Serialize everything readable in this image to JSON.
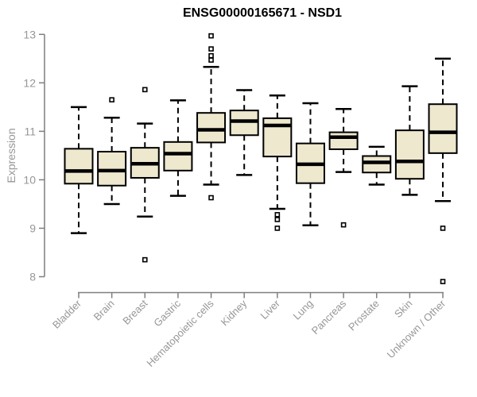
{
  "chart_data": {
    "type": "boxplot",
    "title": "ENSG00000165671 - NSD1",
    "ylabel": "Expression",
    "ylim": [
      8,
      13
    ],
    "yticks": [
      8,
      9,
      10,
      11,
      12,
      13
    ],
    "grid": false,
    "legend": "none",
    "categories": [
      "Bladder",
      "Brain",
      "Breast",
      "Gastric",
      "Hematopoietic cells",
      "Kidney",
      "Liver",
      "Lung",
      "Pancreas",
      "Prostate",
      "Skin",
      "Unknown / Other"
    ],
    "boxes": [
      {
        "category": "Bladder",
        "whisker_low": 8.9,
        "q1": 9.92,
        "median": 10.18,
        "q3": 10.64,
        "whisker_high": 11.5,
        "outliers": []
      },
      {
        "category": "Brain",
        "whisker_low": 9.5,
        "q1": 9.88,
        "median": 10.19,
        "q3": 10.58,
        "whisker_high": 11.28,
        "outliers": [
          11.65
        ]
      },
      {
        "category": "Breast",
        "whisker_low": 9.24,
        "q1": 10.04,
        "median": 10.33,
        "q3": 10.66,
        "whisker_high": 11.16,
        "outliers": [
          11.86,
          8.35
        ]
      },
      {
        "category": "Gastric",
        "whisker_low": 9.67,
        "q1": 10.19,
        "median": 10.54,
        "q3": 10.78,
        "whisker_high": 11.64,
        "outliers": []
      },
      {
        "category": "Hematopoietic cells",
        "whisker_low": 9.9,
        "q1": 10.77,
        "median": 11.03,
        "q3": 11.38,
        "whisker_high": 12.33,
        "outliers": [
          12.97,
          12.7,
          12.56,
          12.47,
          9.63
        ]
      },
      {
        "category": "Kidney",
        "whisker_low": 10.1,
        "q1": 10.92,
        "median": 11.21,
        "q3": 11.43,
        "whisker_high": 11.85,
        "outliers": []
      },
      {
        "category": "Liver",
        "whisker_low": 9.4,
        "q1": 10.48,
        "median": 11.12,
        "q3": 11.27,
        "whisker_high": 11.74,
        "outliers": [
          9.28,
          9.18,
          9.0
        ]
      },
      {
        "category": "Lung",
        "whisker_low": 9.06,
        "q1": 9.93,
        "median": 10.32,
        "q3": 10.75,
        "whisker_high": 11.58,
        "outliers": []
      },
      {
        "category": "Pancreas",
        "whisker_low": 10.16,
        "q1": 10.63,
        "median": 10.88,
        "q3": 10.98,
        "whisker_high": 11.46,
        "outliers": [
          9.07
        ]
      },
      {
        "category": "Prostate",
        "whisker_low": 9.9,
        "q1": 10.15,
        "median": 10.36,
        "q3": 10.49,
        "whisker_high": 10.68,
        "outliers": []
      },
      {
        "category": "Skin",
        "whisker_low": 9.69,
        "q1": 10.02,
        "median": 10.38,
        "q3": 11.02,
        "whisker_high": 11.93,
        "outliers": []
      },
      {
        "category": "Unknown / Other",
        "whisker_low": 9.56,
        "q1": 10.55,
        "median": 10.98,
        "q3": 11.56,
        "whisker_high": 12.5,
        "outliers": [
          9.0,
          7.9
        ]
      }
    ],
    "colors": {
      "box_fill": "#EDE8CE",
      "box_stroke": "#000000",
      "median": "#000000",
      "axis": "#7F7F7F",
      "tick_text": "#979797",
      "title_text": "#000000",
      "background": "#FFFFFF"
    }
  }
}
